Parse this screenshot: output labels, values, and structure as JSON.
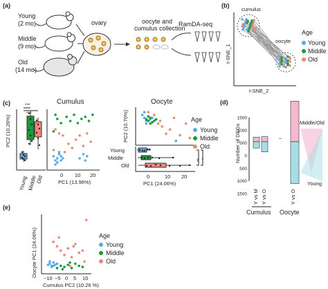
{
  "colors": {
    "young": "#5aa9e6",
    "middle": "#1a9a3a",
    "old": "#e98a78",
    "pink": "#f4b8cf",
    "cyan": "#a7dde6",
    "axis": "#222222"
  },
  "panel_a": {
    "label": "(a)",
    "mice": [
      {
        "name": "Young",
        "age": "(2 mo)"
      },
      {
        "name": "Middle",
        "age": "(9 mo)"
      },
      {
        "name": "Old",
        "age": "(14 mo)"
      }
    ],
    "ovary": "ovary",
    "collection": "oocyte and\ncumulus collection",
    "collection_line1": "oocyte and",
    "collection_line2": "cumulus collection",
    "method": "RamDA-seq"
  },
  "panel_b": {
    "label": "(b)",
    "cumulus": "cumulus",
    "oocyte": "oocyte",
    "ylabel": "t-SNE_1",
    "xlabel": "t-SNE_2",
    "legend_title": "Age",
    "legend": [
      "Young",
      "Middle",
      "Old"
    ]
  },
  "panel_c": {
    "label": "(c)",
    "cumulus_title": "Cumulus",
    "oocyte_title": "Oocyte",
    "ylabel_cumulus": "PC2 (10.26%)",
    "xlabel_cumulus": "PC1 (13.96%)",
    "ylabel_oocyte": "PC2 (10.70%)",
    "xlabel_oocyte": "PC1 (24.06%)",
    "box_categories": [
      "Young",
      "Middle",
      "Old"
    ],
    "sig": [
      "***",
      "***",
      "**",
      "*"
    ],
    "legend_title": "Age",
    "legend": [
      "Young",
      "Middle",
      "Old"
    ],
    "x_ticks_cumulus": [
      "0",
      "10",
      "20"
    ],
    "x_ticks_oocyte": [
      "0",
      "10",
      "20"
    ]
  },
  "panel_d": {
    "label": "(d)",
    "ylabel": "Number of DEGs",
    "y_ticks": [
      "1500",
      "1000",
      "500",
      "0",
      "500",
      "1000",
      "1500"
    ],
    "bar_labels": [
      "Y vs M",
      "Y vs O",
      "Y vs O"
    ],
    "groups": [
      "Cumulus",
      "Oocyte"
    ],
    "dash": "–",
    "middle_old": "Middle/Old",
    "young": "Young"
  },
  "panel_e": {
    "label": "(e)",
    "ylabel": "Oocyte PC1 (24.06%)",
    "xlabel": "Cumulus PC2 (10.26 %)",
    "x_ticks": [
      "−10",
      "−5",
      "0",
      "5",
      "10"
    ],
    "legend_title": "Age",
    "legend": [
      "Young",
      "Middle",
      "Old"
    ]
  },
  "chart_data": [
    {
      "type": "scatter",
      "title": "Cumulus",
      "xlabel": "PC1 (13.96%)",
      "ylabel": "PC2 (10.26%)",
      "series": [
        {
          "name": "Young",
          "x": [
            -2,
            -1,
            0,
            1,
            2,
            3,
            -1,
            0,
            1,
            2,
            12,
            14,
            16,
            15
          ],
          "y": [
            -8,
            -10,
            -9,
            -7,
            -8,
            -9,
            -12,
            -11,
            -6,
            -10,
            -9,
            -7,
            -8,
            -10
          ]
        },
        {
          "name": "Middle",
          "x": [
            -1,
            0,
            2,
            5,
            7,
            9,
            11,
            13,
            15,
            17,
            19,
            -2
          ],
          "y": [
            12,
            10,
            8,
            11,
            9,
            12,
            8,
            10,
            11,
            9,
            12,
            4
          ]
        },
        {
          "name": "Old",
          "x": [
            -1,
            1,
            3,
            6,
            8,
            10,
            12,
            14,
            16,
            18,
            -2,
            4
          ],
          "y": [
            5,
            3,
            2,
            -2,
            -4,
            0,
            2,
            -3,
            3,
            -1,
            -5,
            -6
          ]
        }
      ]
    },
    {
      "type": "scatter",
      "title": "Oocyte",
      "xlabel": "PC1 (24.06%)",
      "ylabel": "PC2 (10.70%)",
      "series": [
        {
          "name": "Young",
          "x": [
            -4,
            -3,
            -2,
            -1,
            0,
            1,
            -3,
            -2,
            13
          ],
          "y": [
            12,
            10,
            8,
            11,
            9,
            10,
            14,
            6,
            -6
          ]
        },
        {
          "name": "Middle",
          "x": [
            -2,
            -1,
            0,
            1,
            2,
            3,
            -1,
            0,
            1,
            2
          ],
          "y": [
            9,
            8,
            10,
            7,
            8,
            9,
            11,
            6,
            7,
            8
          ]
        },
        {
          "name": "Old",
          "x": [
            -1,
            2,
            4,
            6,
            10,
            12,
            15,
            18,
            20,
            8,
            5
          ],
          "y": [
            14,
            12,
            6,
            4,
            2,
            10,
            -2,
            6,
            -4,
            -1,
            8
          ]
        }
      ]
    },
    {
      "type": "bar",
      "title": "",
      "ylabel": "Number of DEGs",
      "categories": [
        "Y vs M",
        "Y vs O",
        "Y vs O"
      ],
      "series": [
        {
          "name": "up",
          "values": [
            180,
            200,
            1600
          ]
        },
        {
          "name": "down",
          "values": [
            -250,
            -400,
            -1650
          ]
        }
      ]
    },
    {
      "type": "scatter",
      "title": "",
      "xlabel": "Cumulus PC2 (10.26 %)",
      "ylabel": "Oocyte PC1 (24.06%)",
      "series": [
        {
          "name": "Young",
          "x": [
            -11,
            -10,
            -9,
            -8,
            -7,
            -6,
            -9,
            -10,
            -8
          ],
          "y": [
            -5,
            -4,
            -6,
            -3,
            -5,
            -4,
            -7,
            -2,
            -6
          ]
        },
        {
          "name": "Middle",
          "x": [
            -6,
            -4,
            -2,
            0,
            2,
            4,
            6,
            8,
            -3,
            1
          ],
          "y": [
            -8,
            -6,
            -7,
            -5,
            -8,
            -4,
            -6,
            -7,
            -9,
            -3
          ]
        },
        {
          "name": "Old",
          "x": [
            -8,
            -6,
            -4,
            -2,
            0,
            2,
            4,
            6,
            8,
            9,
            -5,
            1,
            3,
            10
          ],
          "y": [
            16,
            12,
            8,
            4,
            10,
            2,
            14,
            6,
            8,
            -2,
            20,
            -6,
            12,
            36
          ]
        }
      ]
    }
  ]
}
